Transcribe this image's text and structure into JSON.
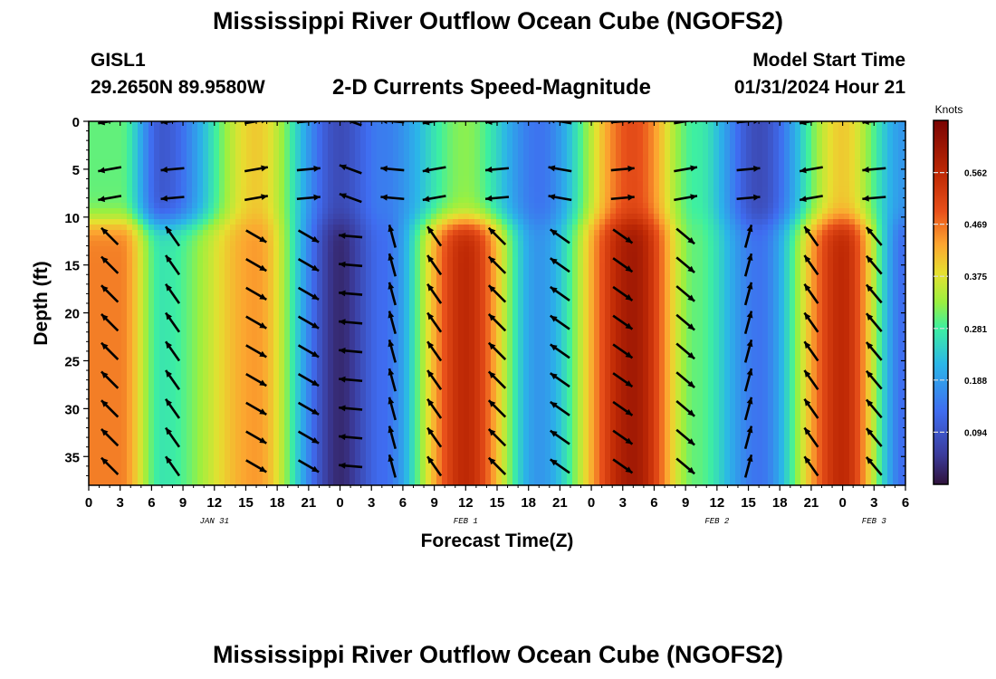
{
  "header": {
    "title": "Mississippi River Outflow Ocean Cube (NGOFS2)",
    "station_id": "GISL1",
    "station_coords": "29.2650N  89.9580W",
    "plot_title": "2-D Currents Speed-Magnitude",
    "model_start_label": "Model Start Time",
    "model_start_value": "01/31/2024 Hour 21"
  },
  "footer": {
    "title": "Mississippi River Outflow Ocean Cube (NGOFS2)"
  },
  "chart_data": {
    "type": "heatmap",
    "xlabel": "Forecast Time(Z)",
    "ylabel": "Depth (ft)",
    "x_tick_labels": [
      "0",
      "3",
      "6",
      "9",
      "12",
      "15",
      "18",
      "21",
      "0",
      "3",
      "6",
      "9",
      "12",
      "15",
      "18",
      "21",
      "0",
      "3",
      "6",
      "9",
      "12",
      "15",
      "18",
      "21",
      "0",
      "3",
      "6"
    ],
    "x_date_labels": [
      {
        "label": "JAN 31",
        "hour": 12
      },
      {
        "label": "FEB 1",
        "hour": 36
      },
      {
        "label": "FEB 2",
        "hour": 60
      },
      {
        "label": "FEB 3",
        "hour": 75
      }
    ],
    "xlim_hours": [
      0,
      78
    ],
    "ylim_ft": [
      0,
      38
    ],
    "y_ticks": [
      0,
      5,
      10,
      15,
      20,
      25,
      30,
      35
    ],
    "y_inverted": true,
    "colorbar": {
      "unit": "Knots",
      "ticks": [
        0.094,
        0.188,
        0.281,
        0.375,
        0.469,
        0.562
      ],
      "range": [
        0.0,
        0.656
      ],
      "colormap": "jet"
    },
    "speed_columns": [
      {
        "hour": 3,
        "surface": 0.3,
        "deep": 0.46
      },
      {
        "hour": 7,
        "surface": 0.1,
        "deep": 0.27
      },
      {
        "hour": 16,
        "surface": 0.4,
        "deep": 0.44
      },
      {
        "hour": 24,
        "surface": 0.08,
        "deep": 0.03
      },
      {
        "hour": 28,
        "surface": 0.15,
        "deep": 0.13
      },
      {
        "hour": 36,
        "surface": 0.32,
        "deep": 0.56
      },
      {
        "hour": 43,
        "surface": 0.14,
        "deep": 0.18
      },
      {
        "hour": 52,
        "surface": 0.5,
        "deep": 0.6
      },
      {
        "hour": 58,
        "surface": 0.28,
        "deep": 0.3
      },
      {
        "hour": 64,
        "surface": 0.08,
        "deep": 0.14
      },
      {
        "hour": 72,
        "surface": 0.4,
        "deep": 0.56
      },
      {
        "hour": 78,
        "surface": 0.18,
        "deep": 0.13
      }
    ],
    "vector_columns": [
      {
        "hour": 2,
        "upper_dir": 190,
        "lower_dir": 135
      },
      {
        "hour": 8,
        "upper_dir": 185,
        "lower_dir": 125
      },
      {
        "hour": 16,
        "upper_dir": 10,
        "lower_dir": -30
      },
      {
        "hour": 21,
        "upper_dir": 5,
        "lower_dir": -30
      },
      {
        "hour": 25,
        "upper_dir": 160,
        "lower_dir": 175
      },
      {
        "hour": 29,
        "upper_dir": 175,
        "lower_dir": 105
      },
      {
        "hour": 33,
        "upper_dir": 190,
        "lower_dir": 125
      },
      {
        "hour": 39,
        "upper_dir": 185,
        "lower_dir": 135
      },
      {
        "hour": 45,
        "upper_dir": 170,
        "lower_dir": 145
      },
      {
        "hour": 51,
        "upper_dir": 5,
        "lower_dir": -35
      },
      {
        "hour": 57,
        "upper_dir": 10,
        "lower_dir": -40
      },
      {
        "hour": 63,
        "upper_dir": 5,
        "lower_dir": 75
      },
      {
        "hour": 69,
        "upper_dir": 190,
        "lower_dir": 125
      },
      {
        "hour": 75,
        "upper_dir": 185,
        "lower_dir": 130
      }
    ],
    "vector_depths_ft": [
      0,
      5,
      8,
      12,
      15,
      18,
      21,
      24,
      27,
      30,
      33,
      36
    ]
  }
}
